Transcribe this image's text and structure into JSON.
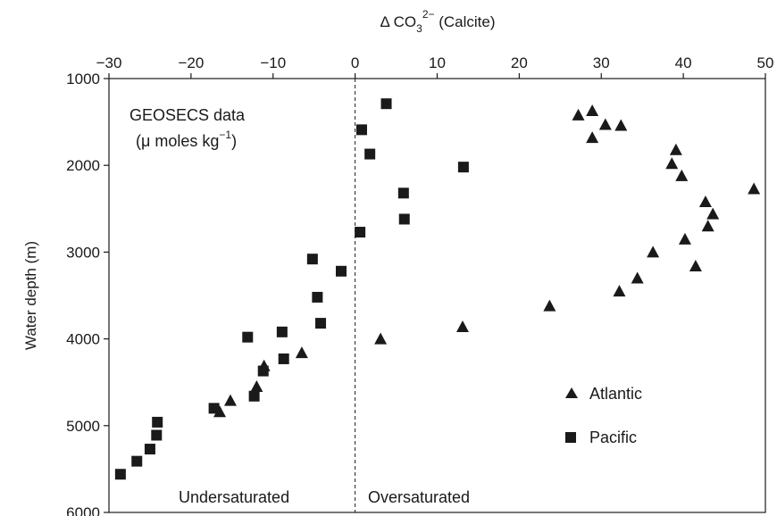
{
  "chart_data": {
    "type": "scatter",
    "xlabel_main": "Δ CO",
    "xlabel_sub": "3",
    "xlabel_sup": "2−",
    "xlabel_tail": " (Calcite)",
    "ylabel": "Water depth (m)",
    "xlim": [
      -30,
      50
    ],
    "ylim": [
      6000,
      1000
    ],
    "x_ticks": [
      -30,
      -20,
      -10,
      0,
      10,
      20,
      30,
      40,
      50
    ],
    "x_tick_labels": [
      "−30",
      "−20",
      "−10",
      "0",
      "10",
      "20",
      "30",
      "40",
      "50"
    ],
    "y_ticks": [
      1000,
      2000,
      3000,
      4000,
      5000,
      6000
    ],
    "y_tick_labels": [
      "1000",
      "2000",
      "3000",
      "4000",
      "5000",
      "6000"
    ],
    "reference_line_x": 0,
    "annotation_line1": "GEOSECS data",
    "annotation_line2_a": "(μ moles kg",
    "annotation_line2_sup": "−1",
    "annotation_line2_b": ")",
    "region_left_label": "Undersaturated",
    "region_right_label": "Oversaturated",
    "legend_position": "lower-right",
    "series": [
      {
        "name": "Atlantic",
        "marker": "triangle",
        "points": [
          [
            27.2,
            1420
          ],
          [
            28.9,
            1370
          ],
          [
            30.5,
            1530
          ],
          [
            32.4,
            1540
          ],
          [
            28.9,
            1680
          ],
          [
            39.1,
            1820
          ],
          [
            38.6,
            1980
          ],
          [
            39.8,
            2120
          ],
          [
            48.6,
            2270
          ],
          [
            42.7,
            2420
          ],
          [
            43.6,
            2560
          ],
          [
            43.0,
            2700
          ],
          [
            40.2,
            2850
          ],
          [
            36.3,
            3000
          ],
          [
            41.5,
            3160
          ],
          [
            34.4,
            3300
          ],
          [
            32.2,
            3450
          ],
          [
            23.7,
            3620
          ],
          [
            13.1,
            3860
          ],
          [
            3.1,
            4000
          ],
          [
            -6.5,
            4160
          ],
          [
            -11.1,
            4310
          ],
          [
            -12.0,
            4550
          ],
          [
            -15.2,
            4710
          ],
          [
            -16.5,
            4840
          ]
        ]
      },
      {
        "name": "Pacific",
        "marker": "square",
        "points": [
          [
            3.8,
            1290
          ],
          [
            0.8,
            1590
          ],
          [
            1.8,
            1870
          ],
          [
            13.2,
            2020
          ],
          [
            5.9,
            2320
          ],
          [
            6.0,
            2620
          ],
          [
            0.6,
            2770
          ],
          [
            -5.2,
            3080
          ],
          [
            -1.7,
            3220
          ],
          [
            -4.6,
            3520
          ],
          [
            -4.2,
            3820
          ],
          [
            -8.9,
            3920
          ],
          [
            -13.1,
            3980
          ],
          [
            -8.7,
            4230
          ],
          [
            -11.2,
            4370
          ],
          [
            -12.3,
            4660
          ],
          [
            -17.2,
            4800
          ],
          [
            -24.1,
            4960
          ],
          [
            -24.2,
            5110
          ],
          [
            -25.0,
            5270
          ],
          [
            -26.6,
            5410
          ],
          [
            -28.6,
            5560
          ]
        ]
      }
    ]
  }
}
